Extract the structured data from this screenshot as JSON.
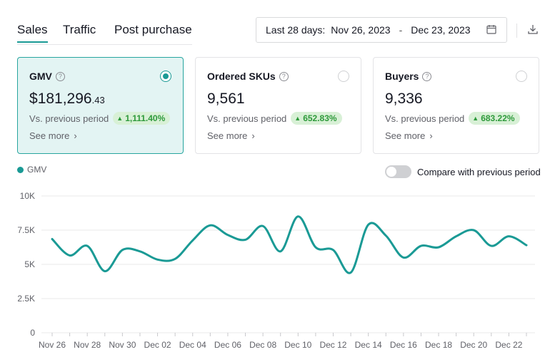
{
  "tabs": [
    {
      "label": "Sales",
      "active": true
    },
    {
      "label": "Traffic",
      "active": false
    },
    {
      "label": "Post purchase",
      "active": false
    }
  ],
  "date_range": {
    "prefix": "Last 28 days:",
    "start": "Nov 26, 2023",
    "separator": "-",
    "end": "Dec 23, 2023",
    "icon": "calendar-icon"
  },
  "download_icon": "download-icon",
  "cards": [
    {
      "title": "GMV",
      "currency": "$",
      "value": "181,296",
      "decimals": ".43",
      "vs_label": "Vs. previous period",
      "change": "1,111.40%",
      "see_more": "See more",
      "selected": true
    },
    {
      "title": "Ordered SKUs",
      "currency": "",
      "value": "9,561",
      "decimals": "",
      "vs_label": "Vs. previous period",
      "change": "652.83%",
      "see_more": "See more",
      "selected": false
    },
    {
      "title": "Buyers",
      "currency": "",
      "value": "9,336",
      "decimals": "",
      "vs_label": "Vs. previous period",
      "change": "683.22%",
      "see_more": "See more",
      "selected": false
    }
  ],
  "legend": {
    "label": "GMV",
    "color": "#1a9a95"
  },
  "compare": {
    "label": "Compare with previous period",
    "enabled": false
  },
  "chart_data": {
    "type": "line",
    "series": [
      {
        "name": "GMV",
        "color": "#1a9a95",
        "values": [
          6850,
          5650,
          6350,
          4500,
          6050,
          5950,
          5350,
          5400,
          6750,
          7850,
          7150,
          6800,
          7800,
          5950,
          8500,
          6250,
          6050,
          4400,
          7900,
          7100,
          5500,
          6350,
          6250,
          7050,
          7500,
          6350,
          7050,
          6400
        ]
      }
    ],
    "x_tick_labels": [
      "Nov 26",
      "Nov 28",
      "Nov 30",
      "Dec 02",
      "Dec 04",
      "Dec 06",
      "Dec 08",
      "Dec 10",
      "Dec 12",
      "Dec 14",
      "Dec 16",
      "Dec 18",
      "Dec 20",
      "Dec 22"
    ],
    "y_ticks": [
      {
        "value": 0,
        "label": "0"
      },
      {
        "value": 2500,
        "label": "2.5K"
      },
      {
        "value": 5000,
        "label": "5K"
      },
      {
        "value": 7500,
        "label": "7.5K"
      },
      {
        "value": 10000,
        "label": "10K"
      }
    ],
    "ylim": [
      0,
      10000
    ],
    "grid": true
  }
}
